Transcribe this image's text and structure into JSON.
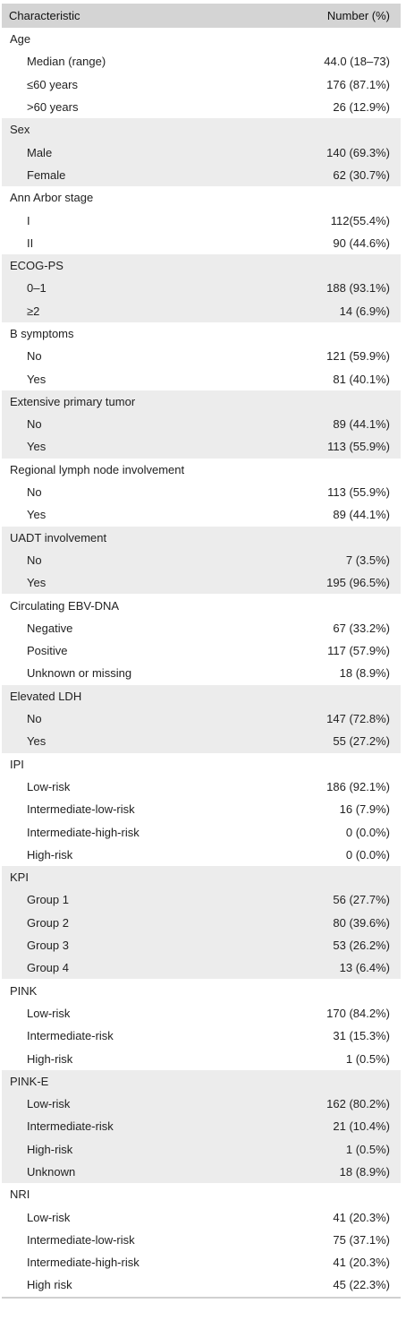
{
  "header": {
    "characteristic": "Characteristic",
    "number": "Number (%)"
  },
  "sections": [
    {
      "title": "Age",
      "shaded": false,
      "rows": [
        {
          "label": "Median (range)",
          "value": "44.0 (18–73)"
        },
        {
          "label": "≤60 years",
          "value": "176 (87.1%)"
        },
        {
          "label": ">60 years",
          "value": "26 (12.9%)"
        }
      ]
    },
    {
      "title": "Sex",
      "shaded": true,
      "rows": [
        {
          "label": "Male",
          "value": "140 (69.3%)"
        },
        {
          "label": "Female",
          "value": "62 (30.7%)"
        }
      ]
    },
    {
      "title": "Ann Arbor stage",
      "shaded": false,
      "rows": [
        {
          "label": "I",
          "value": "112(55.4%)"
        },
        {
          "label": "II",
          "value": "90 (44.6%)"
        }
      ]
    },
    {
      "title": "ECOG-PS",
      "shaded": true,
      "rows": [
        {
          "label": "0–1",
          "value": "188 (93.1%)"
        },
        {
          "label": "≥2",
          "value": "14 (6.9%)"
        }
      ]
    },
    {
      "title": "B symptoms",
      "shaded": false,
      "rows": [
        {
          "label": "No",
          "value": "121 (59.9%)"
        },
        {
          "label": "Yes",
          "value": "81 (40.1%)"
        }
      ]
    },
    {
      "title": "Extensive primary tumor",
      "shaded": true,
      "rows": [
        {
          "label": "No",
          "value": "89 (44.1%)"
        },
        {
          "label": "Yes",
          "value": "113 (55.9%)"
        }
      ]
    },
    {
      "title": "Regional lymph node involvement",
      "shaded": false,
      "rows": [
        {
          "label": "No",
          "value": "113 (55.9%)"
        },
        {
          "label": "Yes",
          "value": "89 (44.1%)"
        }
      ]
    },
    {
      "title": "UADT involvement",
      "shaded": true,
      "rows": [
        {
          "label": "No",
          "value": "7 (3.5%)"
        },
        {
          "label": "Yes",
          "value": "195 (96.5%)"
        }
      ]
    },
    {
      "title": "Circulating EBV-DNA",
      "shaded": false,
      "rows": [
        {
          "label": "Negative",
          "value": "67 (33.2%)"
        },
        {
          "label": "Positive",
          "value": "117 (57.9%)"
        },
        {
          "label": "Unknown or missing",
          "value": "18 (8.9%)"
        }
      ]
    },
    {
      "title": "Elevated LDH",
      "shaded": true,
      "rows": [
        {
          "label": "No",
          "value": "147 (72.8%)"
        },
        {
          "label": "Yes",
          "value": "55 (27.2%)"
        }
      ]
    },
    {
      "title": "IPI",
      "shaded": false,
      "rows": [
        {
          "label": "Low-risk",
          "value": "186 (92.1%)"
        },
        {
          "label": "Intermediate-low-risk",
          "value": "16 (7.9%)"
        },
        {
          "label": "Intermediate-high-risk",
          "value": "0 (0.0%)"
        },
        {
          "label": "High-risk",
          "value": "0 (0.0%)"
        }
      ]
    },
    {
      "title": "KPI",
      "shaded": true,
      "rows": [
        {
          "label": "Group 1",
          "value": "56 (27.7%)"
        },
        {
          "label": "Group 2",
          "value": "80 (39.6%)"
        },
        {
          "label": "Group 3",
          "value": "53 (26.2%)"
        },
        {
          "label": "Group 4",
          "value": "13 (6.4%)"
        }
      ]
    },
    {
      "title": "PINK",
      "shaded": false,
      "rows": [
        {
          "label": "Low-risk",
          "value": "170 (84.2%)"
        },
        {
          "label": "Intermediate-risk",
          "value": "31 (15.3%)"
        },
        {
          "label": "High-risk",
          "value": "1 (0.5%)"
        }
      ]
    },
    {
      "title": "PINK-E",
      "shaded": true,
      "rows": [
        {
          "label": "Low-risk",
          "value": "162 (80.2%)"
        },
        {
          "label": "Intermediate-risk",
          "value": "21 (10.4%)"
        },
        {
          "label": "High-risk",
          "value": "1 (0.5%)"
        },
        {
          "label": "Unknown",
          "value": "18 (8.9%)"
        }
      ]
    },
    {
      "title": "NRI",
      "shaded": false,
      "rows": [
        {
          "label": "Low-risk",
          "value": "41 (20.3%)"
        },
        {
          "label": "Intermediate-low-risk",
          "value": "75 (37.1%)"
        },
        {
          "label": "Intermediate-high-risk",
          "value": "41 (20.3%)"
        },
        {
          "label": "High risk",
          "value": "45 (22.3%)"
        }
      ]
    }
  ]
}
